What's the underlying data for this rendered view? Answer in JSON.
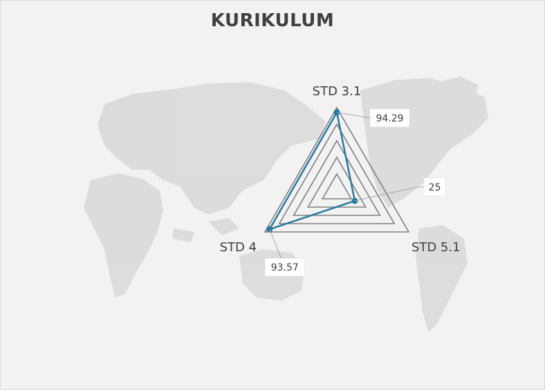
{
  "chart_data": {
    "type": "radar",
    "title": "KURIKULUM",
    "categories": [
      "STD 3.1",
      "STD 5.1",
      "STD 4"
    ],
    "series": [
      {
        "values": [
          94.29,
          25,
          93.57
        ],
        "color": "#2878a0"
      }
    ],
    "rlim": [
      0,
      100
    ],
    "rings": 5,
    "grid": true,
    "legend": "none",
    "data_labels": true,
    "grid_color": "#7f7f7f",
    "background_map": "world-map"
  }
}
